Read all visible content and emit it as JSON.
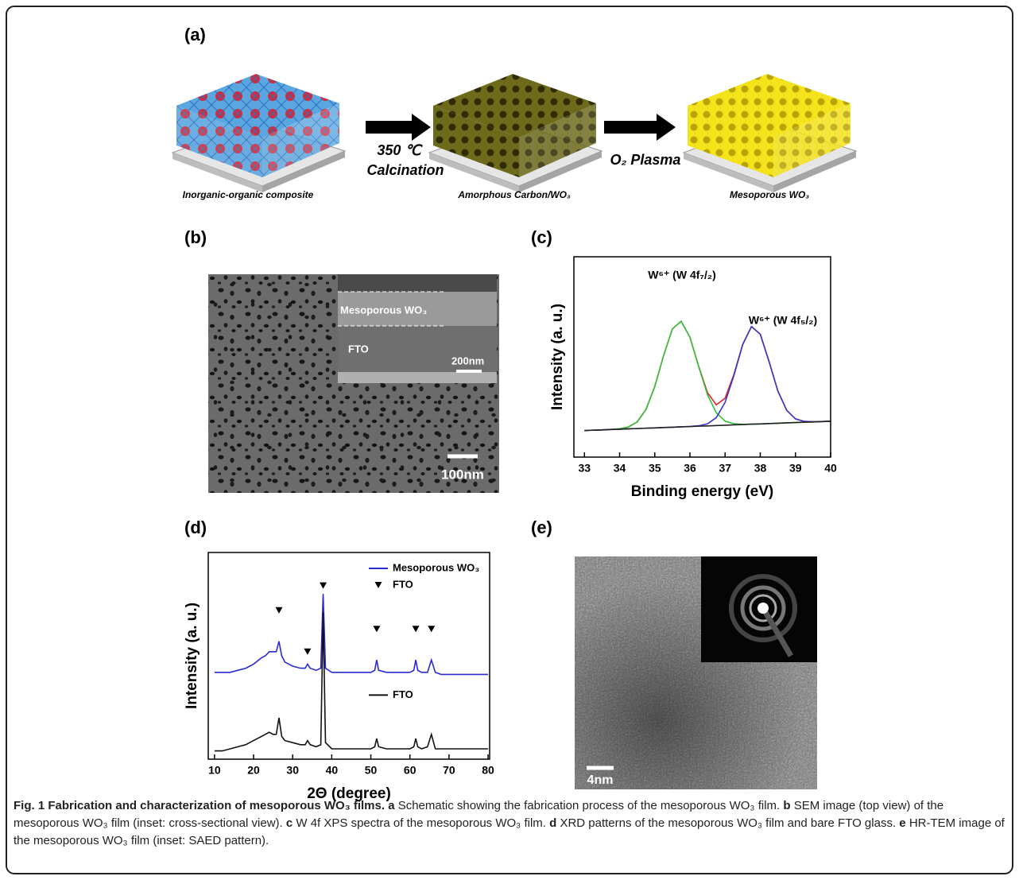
{
  "panel_labels": [
    "(a)",
    "(b)",
    "(c)",
    "(d)",
    "(e)"
  ],
  "schematic": {
    "step_labels": [
      "Inorganic-organic composite",
      "Amorphous Carbon/WO₃",
      "Mesoporous WO₃"
    ],
    "arrow_labels": [
      "350 ℃",
      "Calcination",
      "O₂ Plasma"
    ]
  },
  "sem": {
    "inset_labels": [
      "Mesoporous WO₃",
      "FTO"
    ],
    "inset_scale": "200nm",
    "scale": "100nm"
  },
  "tem": {
    "scale": "4nm"
  },
  "chart_data": [
    {
      "type": "line",
      "x": [
        33,
        33.25,
        33.5,
        33.75,
        34,
        34.25,
        34.5,
        34.75,
        35,
        35.25,
        35.5,
        35.75,
        36,
        36.25,
        36.5,
        36.75,
        37,
        37.25,
        37.5,
        37.75,
        38,
        38.25,
        38.5,
        38.75,
        39,
        39.25,
        39.5,
        39.75,
        40
      ],
      "series": [
        {
          "color": "#e8202a",
          "values": [
            0.02,
            0.023,
            0.025,
            0.029,
            0.033,
            0.047,
            0.085,
            0.179,
            0.352,
            0.585,
            0.786,
            0.844,
            0.724,
            0.503,
            0.305,
            0.214,
            0.264,
            0.443,
            0.67,
            0.804,
            0.746,
            0.54,
            0.318,
            0.173,
            0.108,
            0.089,
            0.086,
            0.088,
            0.09
          ]
        },
        {
          "color": "#2fc23a",
          "values": [
            0.02,
            0.023,
            0.025,
            0.029,
            0.033,
            0.047,
            0.085,
            0.179,
            0.352,
            0.585,
            0.786,
            0.844,
            0.723,
            0.5,
            0.289,
            0.154,
            0.091,
            0.071,
            0.067,
            0.068,
            0.07,
            0.073,
            0.075,
            0.078,
            0.08,
            0.083,
            0.085,
            0.088,
            0.09
          ]
        },
        {
          "color": "#3636c8",
          "values": [
            0.02,
            0.023,
            0.025,
            0.028,
            0.03,
            0.033,
            0.035,
            0.038,
            0.04,
            0.043,
            0.045,
            0.048,
            0.051,
            0.056,
            0.071,
            0.118,
            0.233,
            0.435,
            0.668,
            0.804,
            0.746,
            0.54,
            0.318,
            0.173,
            0.108,
            0.089,
            0.086,
            0.088,
            0.09
          ]
        },
        {
          "color": "#222222",
          "values": [
            0.02,
            0.023,
            0.025,
            0.028,
            0.03,
            0.033,
            0.035,
            0.038,
            0.04,
            0.043,
            0.045,
            0.048,
            0.05,
            0.053,
            0.055,
            0.058,
            0.06,
            0.063,
            0.065,
            0.068,
            0.07,
            0.073,
            0.075,
            0.078,
            0.08,
            0.083,
            0.085,
            0.088,
            0.09
          ]
        }
      ],
      "xlim": [
        32.7,
        40
      ],
      "xticks": [
        33,
        34,
        35,
        36,
        37,
        38,
        39,
        40
      ],
      "ylim": [
        -0.18,
        1.33
      ],
      "xlabel": "Binding energy (eV)",
      "ylabel": "Intensity (a. u.)",
      "annotations": [
        "W⁶⁺ (W 4f₇/₂)",
        "W⁶⁺ (W 4f₅/₂)"
      ]
    },
    {
      "type": "line",
      "x": [
        10,
        12,
        14,
        16,
        18,
        20,
        22,
        23,
        24,
        25,
        25.8,
        26.5,
        27.2,
        28,
        30,
        32,
        33.2,
        33.8,
        34.5,
        36,
        37.2,
        37.8,
        38.4,
        40,
        42,
        45,
        48,
        50,
        51,
        51.5,
        52,
        54,
        56,
        58,
        60,
        61,
        61.5,
        62,
        63,
        64.5,
        65.5,
        66.5,
        68,
        70,
        72,
        74,
        76,
        78,
        80
      ],
      "series": [
        {
          "name": "Mesoporous WO₃",
          "color": "#2b2bd6",
          "values": [
            0.42,
            0.42,
            0.42,
            0.43,
            0.44,
            0.46,
            0.49,
            0.5,
            0.52,
            0.52,
            0.52,
            0.57,
            0.5,
            0.47,
            0.45,
            0.44,
            0.44,
            0.46,
            0.44,
            0.43,
            0.44,
            0.8,
            0.44,
            0.42,
            0.42,
            0.42,
            0.42,
            0.42,
            0.43,
            0.48,
            0.43,
            0.42,
            0.42,
            0.42,
            0.42,
            0.43,
            0.48,
            0.43,
            0.42,
            0.42,
            0.48,
            0.42,
            0.41,
            0.41,
            0.41,
            0.41,
            0.41,
            0.41,
            0.41
          ]
        },
        {
          "name": "FTO",
          "color": "#111111",
          "values": [
            0.04,
            0.04,
            0.05,
            0.06,
            0.07,
            0.09,
            0.11,
            0.12,
            0.13,
            0.12,
            0.12,
            0.2,
            0.11,
            0.09,
            0.08,
            0.07,
            0.07,
            0.09,
            0.07,
            0.06,
            0.07,
            0.71,
            0.08,
            0.05,
            0.05,
            0.05,
            0.05,
            0.05,
            0.06,
            0.1,
            0.06,
            0.05,
            0.05,
            0.05,
            0.05,
            0.06,
            0.1,
            0.06,
            0.05,
            0.06,
            0.12,
            0.05,
            0.05,
            0.05,
            0.05,
            0.05,
            0.05,
            0.05,
            0.05
          ]
        }
      ],
      "peak_markers": {
        "name": "FTO",
        "x": [
          26.5,
          33.8,
          37.8,
          51.5,
          61.5,
          65.5
        ],
        "y": [
          0.72,
          0.52,
          0.84,
          0.63,
          0.63,
          0.63
        ]
      },
      "legend": "upper right",
      "xlim": [
        8.4,
        80.4
      ],
      "xticks": [
        10,
        20,
        30,
        40,
        50,
        60,
        70,
        80
      ],
      "ylim": [
        0,
        1
      ],
      "xlabel": "2Θ (degree)",
      "ylabel": "Intensity (a. u.)"
    }
  ],
  "caption": {
    "title": "Fig. 1 Fabrication and characterization of mesoporous WO₃ films.",
    "items": [
      {
        "letter": "a",
        "text": "Schematic showing the fabrication process of the mesoporous WO₃ film."
      },
      {
        "letter": "b",
        "text": "SEM image (top view) of the mesoporous WO₃ film (inset: cross-sectional view)."
      },
      {
        "letter": "c",
        "text": "W 4f XPS spectra of the mesoporous WO₃ film."
      },
      {
        "letter": "d",
        "text": "XRD patterns of the mesoporous WO₃ film and bare FTO glass."
      },
      {
        "letter": "e",
        "text": "HR-TEM image of the mesoporous WO₃ film (inset: SAED pattern)."
      }
    ]
  }
}
